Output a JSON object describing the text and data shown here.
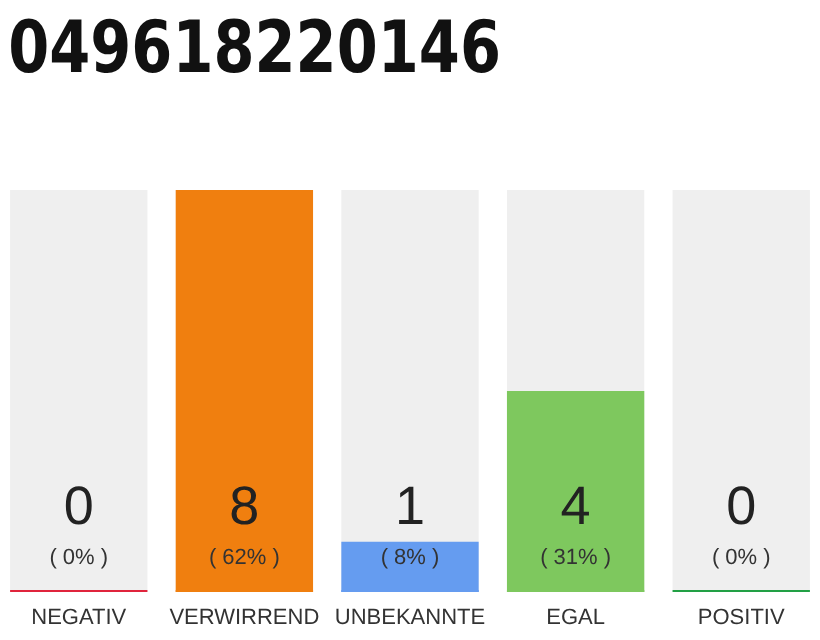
{
  "chart_data": {
    "type": "bar",
    "title": "049618220146",
    "categories": [
      "NEGATIV",
      "VERWIRREND",
      "UNBEKANNTE",
      "EGAL",
      "POSITIV"
    ],
    "values": [
      0,
      8,
      1,
      4,
      0
    ],
    "colors": [
      "#e0243c",
      "#f07f0f",
      "#659cf0",
      "#7ec85e",
      "#22a045"
    ],
    "data_labels": true,
    "annotations": [
      "( 0% )",
      "( 62% )",
      "( 8% )",
      "( 31% )",
      "( 0% )"
    ]
  }
}
